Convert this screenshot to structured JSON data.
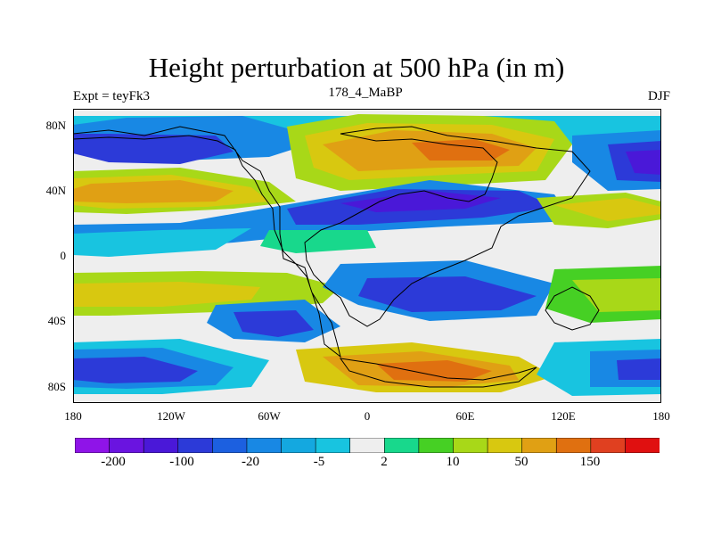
{
  "title": "Height perturbation at 500 hPa (in m)",
  "subtitle_left": "Expt = teyFk3",
  "subtitle_center": "178_4_MaBP",
  "subtitle_right": "DJF",
  "map": {
    "projection": "cylindrical-equidistant",
    "lon_range": [
      -180,
      180
    ],
    "lat_range": [
      -90,
      90
    ],
    "y_ticks": [
      "80N",
      "40N",
      "0",
      "40S",
      "80S"
    ],
    "x_ticks": [
      "180",
      "120W",
      "60W",
      "0",
      "60E",
      "120E",
      "180"
    ]
  },
  "colorbar": {
    "colors": [
      "#8f14e8",
      "#6a14e0",
      "#4a18d8",
      "#2c3ad8",
      "#1c60e0",
      "#1888e4",
      "#14a8e0",
      "#18c4e0",
      "#eeeeee",
      "#18d88c",
      "#46d024",
      "#a8d818",
      "#d8c810",
      "#e0a014",
      "#e07010",
      "#e04020",
      "#e01010"
    ],
    "labels": [
      "-200",
      "-100",
      "-20",
      "-5",
      "2",
      "10",
      "50",
      "150"
    ]
  },
  "chart_data": {
    "type": "heatmap",
    "title": "Height perturbation at 500 hPa (in m)",
    "field": "500 hPa geopotential height perturbation",
    "units": "m",
    "experiment": "teyFk3",
    "time_slice": "178_4_MaBP",
    "season": "DJF",
    "contour_levels_labeled": [
      -200,
      -100,
      -20,
      -5,
      2,
      10,
      50,
      150
    ]
  }
}
